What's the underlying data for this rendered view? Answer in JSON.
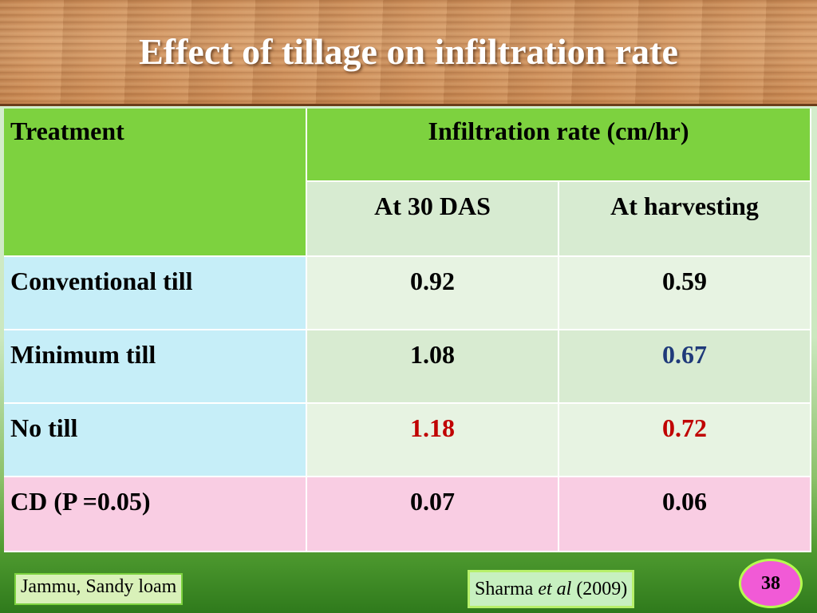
{
  "slide": {
    "title": "Effect of tillage on infiltration rate",
    "page_number": "38",
    "location_note": "Jammu, Sandy loam",
    "citation": {
      "author": "Sharma ",
      "etal": "et al",
      "year": " (2009)"
    }
  },
  "table": {
    "header": {
      "treatment": "Treatment",
      "group": "Infiltration rate (cm/hr)",
      "col1": "At 30 DAS",
      "col2": "At harvesting"
    },
    "rows": [
      {
        "label": "Conventional till",
        "v1": "0.92",
        "v2": "0.59"
      },
      {
        "label": "Minimum till",
        "v1": "1.08",
        "v2": "0.67"
      },
      {
        "label": "No till",
        "v1": "1.18",
        "v2": "0.72"
      },
      {
        "label": "CD (P =0.05)",
        "v1": "0.07",
        "v2": "0.06"
      }
    ]
  },
  "colors": {
    "header_green": "#7dd23f",
    "highlight_red": "#c00000",
    "highlight_blue": "#1f3a7a"
  },
  "chart_data": {
    "type": "table",
    "title": "Effect of tillage on infiltration rate",
    "columns": [
      "Treatment",
      "At 30 DAS",
      "At harvesting"
    ],
    "group_header": "Infiltration rate (cm/hr)",
    "rows": [
      [
        "Conventional till",
        0.92,
        0.59
      ],
      [
        "Minimum till",
        1.08,
        0.67
      ],
      [
        "No till",
        1.18,
        0.72
      ],
      [
        "CD (P =0.05)",
        0.07,
        0.06
      ]
    ]
  }
}
